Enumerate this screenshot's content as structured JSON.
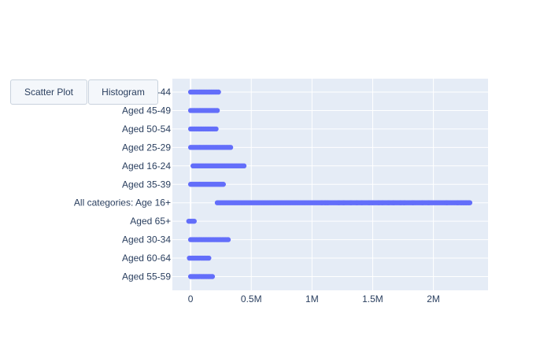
{
  "controls": {
    "buttons": [
      {
        "label": "Scatter Plot",
        "active": true
      },
      {
        "label": "Histogram",
        "active": false
      }
    ]
  },
  "style": {
    "plot_background": "#e5ecf6",
    "grid_color": "#ffffff",
    "marker_color": "#636efa",
    "text_color": "#2a3f5f"
  },
  "chart_data": {
    "type": "scatter",
    "orientation": "horizontal",
    "title": "",
    "xlabel": "",
    "ylabel": "",
    "xlim": [
      -150000,
      2450000
    ],
    "x_ticks": [
      0,
      500000,
      1000000,
      1500000,
      2000000
    ],
    "x_tick_labels": [
      "0",
      "0.5M",
      "1M",
      "1.5M",
      "2M"
    ],
    "grid": true,
    "legend": "none",
    "categories": [
      "Aged 40-44",
      "Aged 45-49",
      "Aged 50-54",
      "Aged 25-29",
      "Aged 16-24",
      "Aged 35-39",
      "All categories: Age 16+",
      "Aged 65+",
      "Aged 30-34",
      "Aged 60-64",
      "Aged 55-59"
    ],
    "series": [
      {
        "points": [
          {
            "category": "Aged 40-44",
            "min": 0,
            "max": 230000
          },
          {
            "category": "Aged 45-49",
            "min": 0,
            "max": 220000
          },
          {
            "category": "Aged 50-54",
            "min": 0,
            "max": 210000
          },
          {
            "category": "Aged 25-29",
            "min": 0,
            "max": 330000
          },
          {
            "category": "Aged 16-24",
            "min": 20000,
            "max": 440000
          },
          {
            "category": "Aged 35-39",
            "min": 0,
            "max": 270000
          },
          {
            "category": "All categories: Age 16+",
            "min": 220000,
            "max": 2300000
          },
          {
            "category": "Aged 65+",
            "min": -15000,
            "max": 30000
          },
          {
            "category": "Aged 30-34",
            "min": 0,
            "max": 310000
          },
          {
            "category": "Aged 60-64",
            "min": -10000,
            "max": 150000
          },
          {
            "category": "Aged 55-59",
            "min": 0,
            "max": 180000
          }
        ],
        "extra_points_all_categories": [
          2290000,
          2270000,
          2250000,
          2230000,
          2200000,
          2110000,
          1960000,
          1910000,
          1830000,
          1760000,
          1730000,
          1670000,
          1630000,
          1580000,
          1550000,
          1500000,
          1470000,
          1410000,
          1370000,
          1320000,
          1260000,
          1220000,
          1130000,
          1110000,
          1080000
        ]
      }
    ]
  }
}
